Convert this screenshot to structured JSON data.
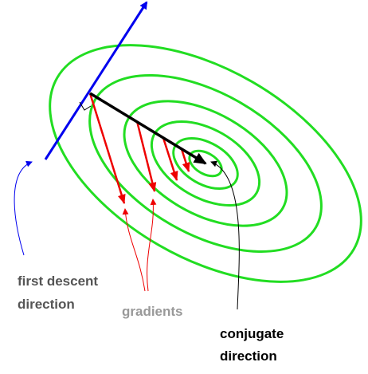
{
  "labels": {
    "first_descent": [
      "first descent",
      "direction"
    ],
    "gradients": "gradients",
    "conjugate": [
      "conjugate",
      "direction"
    ]
  }
}
